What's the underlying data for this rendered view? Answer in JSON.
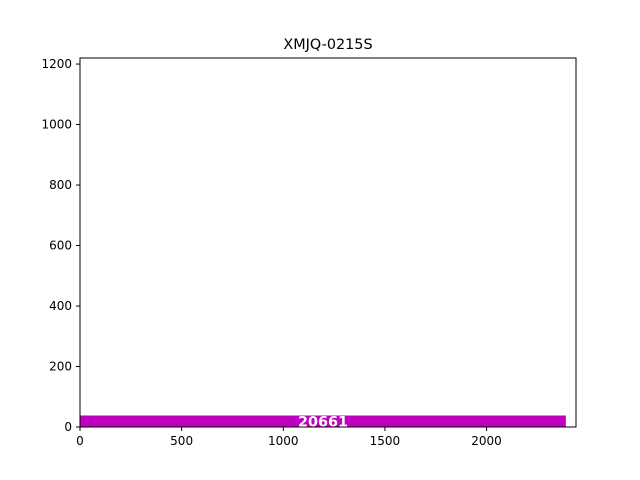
{
  "chart_data": {
    "type": "bar",
    "orientation": "horizontal",
    "title": "XMJQ-0215S",
    "xlabel": "",
    "ylabel": "",
    "xlim": [
      0,
      2440
    ],
    "ylim": [
      0,
      1220
    ],
    "x_ticks": [
      0,
      500,
      1000,
      1500,
      2000
    ],
    "y_ticks": [
      0,
      200,
      400,
      600,
      800,
      1000,
      1200
    ],
    "grid": false,
    "legend": "none",
    "bars": [
      {
        "x_start": 0,
        "x_end": 2390,
        "y_start": 0,
        "y_end": 38,
        "label": "20661",
        "color": "#bf00bf"
      }
    ]
  }
}
